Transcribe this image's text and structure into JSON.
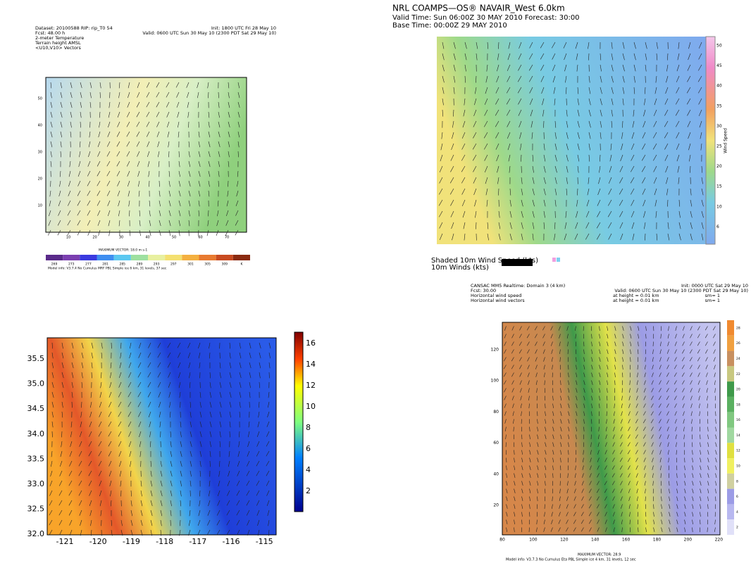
{
  "panels": [
    {
      "header": [
        "Dataset: 20100588  RIP: rip_T0 54",
        "Init: 1800 UTC Fri 28 May 10",
        "Fcst: 48.00 h",
        "Valid: 0600 UTC Sun 30 May 10 (2300 PDT Sat 29 May 10)",
        "2-meter Temperature",
        "Terrain height AMSL",
        "<U10,V10> Vectors"
      ],
      "xticks": [
        "10",
        "20",
        "30",
        "40",
        "50",
        "60",
        "70"
      ],
      "yticks": [
        "50",
        "40",
        "30",
        "20",
        "10"
      ],
      "colorbar_ticks": [
        "269",
        "273",
        "277",
        "281",
        "285",
        "289",
        "293",
        "297",
        "301",
        "305",
        "309",
        "K"
      ],
      "footer": [
        "MAXIMUM VECTOR: 18.0 m s-1",
        "Model info: V3.7.4  No Cumulus  MRF PBL   Simple ice   6 km, 31 levels, 37 sec"
      ]
    },
    {
      "header": [
        "NRL COAMPS—OS® NAVAIR_West 6.0km",
        "Valid Time: Sun 06:00Z 30 MAY 2010    Forecast: 30:00",
        "Base Time: 00:00Z 29 MAY 2010"
      ],
      "colorbar_ticks": [
        "50",
        "45",
        "40",
        "35",
        "30",
        "25",
        "20",
        "15",
        "10",
        "6"
      ],
      "colorbar_label": "Wind Speed",
      "legend": [
        "Shaded 10m Wind Speed (kts)",
        "10m Winds (kts)"
      ]
    },
    {
      "xticks": [
        "-121",
        "-120",
        "-119",
        "-118",
        "-117",
        "-116",
        "-115"
      ],
      "yticks": [
        "35.5",
        "35.0",
        "34.5",
        "34.0",
        "33.5",
        "33.0",
        "32.5",
        "32.0"
      ],
      "colorbar_ticks": [
        "16",
        "14",
        "12",
        "10",
        "8",
        "6",
        "4",
        "2"
      ]
    },
    {
      "header": [
        "CANSAC MM5 Realtime: Domain 3  (4 km)",
        "Init: 0000 UTC Sat 29 May 10",
        "Fcst: 30.00",
        "Valid: 0600 UTC Sun 30 May 10 (2300 PDT Sat 29 May 10)",
        "Horizontal wind speed",
        "at height = 0.01 km",
        "sm= 1",
        "Horizontal wind vectors",
        "at height = 0.01 km",
        "sm= 1"
      ],
      "xticks": [
        "80",
        "100",
        "120",
        "140",
        "160",
        "180",
        "200",
        "220"
      ],
      "yticks": [
        "120",
        "100",
        "80",
        "60",
        "40",
        "20"
      ],
      "colorbar_ticks": [
        "28",
        "26",
        "24",
        "22",
        "20",
        "18",
        "16",
        "14",
        "12",
        "10",
        "8",
        "6",
        "4",
        "2"
      ],
      "footer": [
        "MAXIMUM VECTOR: 28.9",
        "Model info: V3.7.3  No Cumulus  Eta PBL   Simple ice   4 km, 31 levels, 12 sec"
      ]
    }
  ]
}
